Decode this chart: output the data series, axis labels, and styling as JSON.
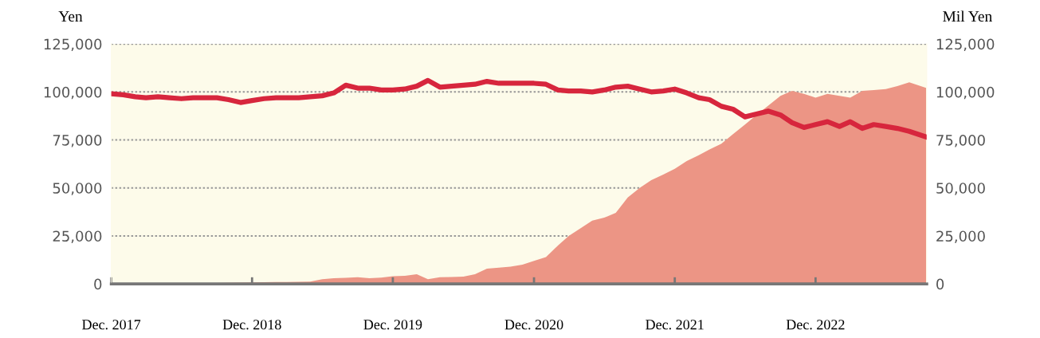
{
  "chart_data": {
    "type": "line",
    "ylabel": "Yen",
    "y2label": "Mil Yen",
    "x": [
      "2017-12",
      "2018-01",
      "2018-02",
      "2018-03",
      "2018-04",
      "2018-05",
      "2018-06",
      "2018-07",
      "2018-08",
      "2018-09",
      "2018-10",
      "2018-11",
      "2018-12",
      "2019-01",
      "2019-02",
      "2019-03",
      "2019-04",
      "2019-05",
      "2019-06",
      "2019-07",
      "2019-08",
      "2019-09",
      "2019-10",
      "2019-11",
      "2019-12",
      "2020-01",
      "2020-02",
      "2020-03",
      "2020-04",
      "2020-05",
      "2020-06",
      "2020-07",
      "2020-08",
      "2020-09",
      "2020-10",
      "2020-11",
      "2020-12",
      "2021-01",
      "2021-02",
      "2021-03",
      "2021-04",
      "2021-05",
      "2021-06",
      "2021-07",
      "2021-08",
      "2021-09",
      "2021-10",
      "2021-11",
      "2021-12",
      "2022-01",
      "2022-02",
      "2022-03",
      "2022-04",
      "2022-05",
      "2022-06",
      "2022-07",
      "2022-08",
      "2022-09",
      "2022-10",
      "2022-11",
      "2022-12",
      "2023-01",
      "2023-02",
      "2023-03",
      "2023-04",
      "2023-05",
      "2023-06",
      "2023-07",
      "2023-08",
      "2023-09-15"
    ],
    "series": [
      {
        "type": "area",
        "axis": "y2",
        "color": "#ec9585",
        "values": [
          0,
          0,
          0,
          0,
          0,
          0,
          0,
          300,
          400,
          500,
          600,
          700,
          800,
          900,
          1000,
          1000,
          1100,
          1200,
          2500,
          3000,
          3200,
          3500,
          3000,
          3300,
          4000,
          4200,
          5000,
          2500,
          3500,
          3600,
          3800,
          5000,
          8000,
          8500,
          9000,
          10000,
          12000,
          14000,
          20000,
          25000,
          29000,
          33000,
          34500,
          37000,
          45000,
          50000,
          54000,
          57000,
          60000,
          64000,
          67000,
          70000,
          73000,
          78000,
          83000,
          88000,
          93000,
          98000,
          100500,
          99000,
          97000,
          99000,
          98000,
          97000,
          100500,
          101000,
          101500,
          103000,
          105000,
          102000
        ]
      },
      {
        "axis": "y",
        "color": "#d7263d",
        "values": [
          99000,
          98500,
          97500,
          97000,
          97500,
          97000,
          96500,
          97000,
          97000,
          97000,
          96000,
          94500,
          95500,
          96500,
          97000,
          97000,
          97000,
          97500,
          98000,
          99500,
          103500,
          102000,
          102000,
          101000,
          101000,
          101500,
          103000,
          106000,
          102500,
          103000,
          103500,
          104000,
          105500,
          104500,
          104500,
          104500,
          104500,
          104000,
          101000,
          100500,
          100500,
          100000,
          101000,
          102500,
          103000,
          101500,
          100000,
          100500,
          101500,
          99500,
          97000,
          96000,
          92500,
          91000,
          87000,
          88500,
          90000,
          88000,
          84000,
          81500,
          83000,
          84500,
          82000,
          84500,
          81000,
          83000,
          82000,
          81000,
          79500,
          76500
        ]
      }
    ],
    "xlim": [
      "2017-12",
      "2023-09-15"
    ],
    "xticks": [
      {
        "value": "2017-12",
        "label": "Dec. 2017"
      },
      {
        "value": "2018-12",
        "label": "Dec. 2018"
      },
      {
        "value": "2019-12",
        "label": "Dec. 2019"
      },
      {
        "value": "2020-12",
        "label": "Dec. 2020"
      },
      {
        "value": "2021-12",
        "label": "Dec. 2021"
      },
      {
        "value": "2022-12",
        "label": "Dec. 2022"
      }
    ],
    "ylim": [
      0,
      125000
    ],
    "yticks": [
      0,
      {
        "value": 25000,
        "label": "25,000"
      },
      {
        "value": 50000,
        "label": "50,000"
      },
      {
        "value": 75000,
        "label": "75,000"
      },
      {
        "value": 100000,
        "label": "100,000"
      },
      {
        "value": 125000,
        "label": "125,000"
      }
    ],
    "y2lim": [
      0,
      125000
    ],
    "y2ticks": [
      0,
      {
        "value": 25000,
        "label": "25,000"
      },
      {
        "value": 50000,
        "label": "50,000"
      },
      {
        "value": 75000,
        "label": "75,000"
      },
      {
        "value": 100000,
        "label": "100,000"
      },
      {
        "value": 125000,
        "label": "125,000"
      }
    ],
    "grid": "y"
  }
}
